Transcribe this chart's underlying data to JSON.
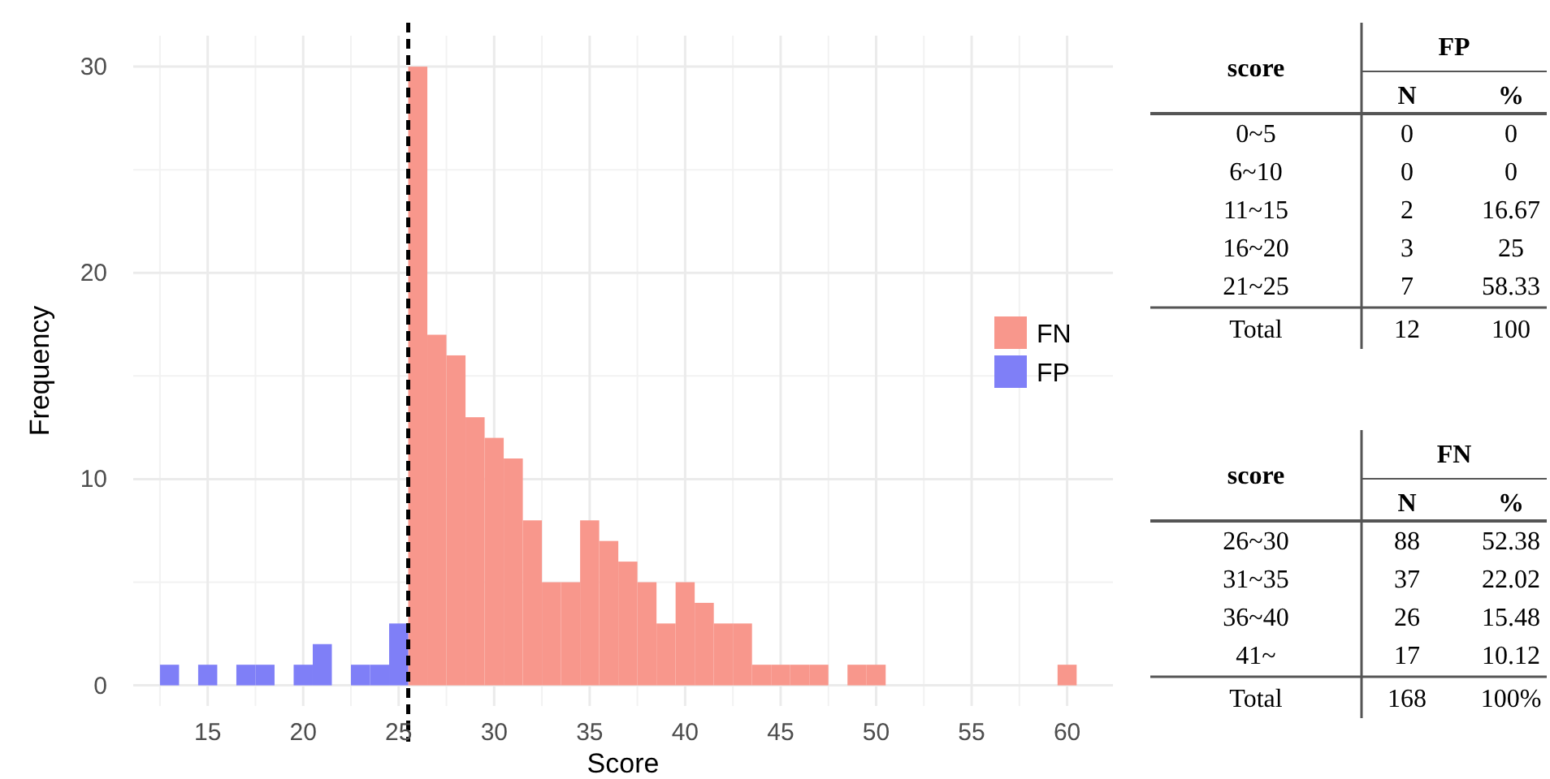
{
  "chart_data": [
    {
      "type": "histogram",
      "xlabel": "Score",
      "ylabel": "Frequency",
      "bins": [
        12.5,
        13.5,
        14.5,
        15.5,
        16.5,
        17.5,
        18.5,
        19.5,
        20.5,
        21.5,
        22.5,
        23.5,
        24.5,
        25.5,
        26.5,
        27.5,
        28.5,
        29.5,
        30.5,
        31.5,
        32.5,
        33.5,
        34.5,
        35.5,
        36.5,
        37.5,
        38.5,
        39.5,
        40.5,
        41.5,
        42.5,
        43.5,
        44.5,
        45.5,
        46.5,
        47.5,
        48.5,
        49.5,
        50.5,
        51.5,
        52.5,
        53.5,
        54.5,
        55.5,
        56.5,
        57.5,
        58.5,
        59.5,
        60.5
      ],
      "series": [
        {
          "name": "FN",
          "color": "#f8978c",
          "values": [
            0,
            0,
            0,
            0,
            0,
            0,
            0,
            0,
            0,
            0,
            0,
            0,
            0,
            30,
            17,
            16,
            13,
            12,
            11,
            8,
            5,
            5,
            8,
            7,
            6,
            5,
            3,
            5,
            4,
            3,
            3,
            1,
            1,
            1,
            1,
            0,
            1,
            1,
            0,
            0,
            0,
            0,
            0,
            0,
            0,
            0,
            0,
            1
          ]
        },
        {
          "name": "FP",
          "color": "#7f7ff7",
          "values": [
            1,
            0,
            1,
            0,
            1,
            1,
            0,
            1,
            2,
            0,
            1,
            1,
            3,
            0,
            0,
            0,
            0,
            0,
            0,
            0,
            0,
            0,
            0,
            0,
            0,
            0,
            0,
            0,
            0,
            0,
            0,
            0,
            0,
            0,
            0,
            0,
            0,
            0,
            0,
            0,
            0,
            0,
            0,
            0,
            0,
            0,
            0,
            0
          ]
        }
      ],
      "xlim": [
        11.1,
        62.4
      ],
      "ylim": [
        -1,
        31.5
      ],
      "xticks": [
        15,
        20,
        25,
        30,
        35,
        40,
        45,
        50,
        55,
        60
      ],
      "yticks": [
        0,
        10,
        20,
        30
      ],
      "grid": true,
      "legend": "right",
      "ref_lines": [
        {
          "axis": "x",
          "value": 25.5,
          "color": "#000000",
          "line_style": "dashed"
        }
      ]
    },
    {
      "type": "other",
      "title": "FP",
      "annotations": [
        "score",
        "N",
        "%",
        "0~5",
        "0",
        "0",
        "6~10",
        "0",
        "0",
        "11~15",
        "2",
        "16.67",
        "16~20",
        "3",
        "25",
        "21~25",
        "7",
        "58.33",
        "Total",
        "12",
        "100"
      ]
    },
    {
      "type": "other",
      "title": "FN",
      "annotations": [
        "score",
        "N",
        "%",
        "26~30",
        "88",
        "52.38",
        "31~35",
        "37",
        "22.02",
        "36~40",
        "26",
        "15.48",
        "41~",
        "17",
        "10.12",
        "Total",
        "168",
        "100%"
      ]
    }
  ]
}
